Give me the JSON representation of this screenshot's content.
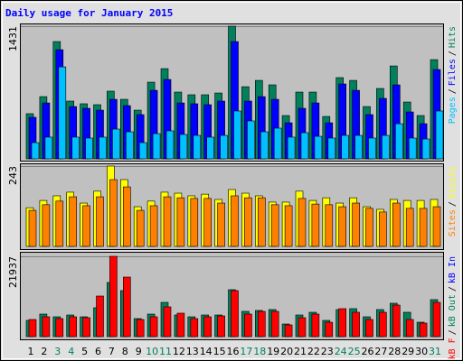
{
  "chart_data": [
    {
      "type": "bar",
      "title": "Daily usage for January 2015",
      "legend_separator": "/",
      "ylim": [
        0,
        1431
      ],
      "yticks": [
        1431
      ],
      "series": [
        {
          "name": "Pages",
          "color": "#00c0ff",
          "values": [
            175,
            234,
            992,
            234,
            224,
            234,
            321,
            292,
            175,
            272,
            302,
            263,
            253,
            234,
            253,
            516,
            409,
            292,
            331,
            234,
            282,
            243,
            224,
            253,
            253,
            224,
            253,
            379,
            224,
            214,
            516
          ]
        },
        {
          "name": "Files",
          "color": "#0000ff",
          "values": [
            448,
            603,
            1177,
            564,
            545,
            525,
            642,
            574,
            477,
            739,
            856,
            603,
            594,
            584,
            623,
            1265,
            623,
            671,
            642,
            389,
            545,
            603,
            389,
            808,
            739,
            477,
            652,
            798,
            506,
            379,
            963
          ]
        },
        {
          "name": "Hits",
          "color": "#00805c",
          "values": [
            487,
            671,
            1265,
            623,
            594,
            584,
            730,
            642,
            525,
            827,
            973,
            720,
            691,
            691,
            710,
            1431,
            778,
            846,
            798,
            467,
            720,
            720,
            457,
            876,
            846,
            564,
            759,
            1002,
            613,
            467,
            1070
          ]
        }
      ]
    },
    {
      "type": "bar",
      "legend_separator": "/",
      "ylim": [
        0,
        243
      ],
      "yticks": [
        243
      ],
      "series": [
        {
          "name": "Sites",
          "color": "#ff8000",
          "values": [
            109,
            126,
            137,
            150,
            123,
            150,
            202,
            180,
            109,
            123,
            150,
            147,
            145,
            145,
            131,
            153,
            147,
            147,
            126,
            123,
            145,
            128,
            126,
            120,
            131,
            115,
            104,
            131,
            115,
            115,
            120
          ]
        },
        {
          "name": "Visits",
          "color": "#ffff00",
          "values": [
            117,
            139,
            153,
            164,
            131,
            167,
            243,
            202,
            120,
            137,
            164,
            161,
            153,
            158,
            142,
            172,
            161,
            153,
            134,
            134,
            167,
            139,
            147,
            131,
            147,
            120,
            112,
            142,
            139,
            139,
            142
          ]
        }
      ]
    },
    {
      "type": "bar",
      "legend_separator": "/",
      "ylim": [
        0,
        21937
      ],
      "yticks": [
        21937
      ],
      "series": [
        {
          "name": "kB F",
          "color": "#ff0000",
          "values": [
            4684,
            5423,
            4930,
            5423,
            5177,
            11093,
            21937,
            16269,
            4684,
            5423,
            8135,
            6409,
            4930,
            5423,
            5670,
            12572,
            6163,
            6902,
            6902,
            3205,
            5177,
            6163,
            3944,
            7642,
            6656,
            4684,
            6656,
            8628,
            4684,
            3698,
            9367
          ]
        },
        {
          "name": "kB Out",
          "color": "#00805c",
          "values": [
            4437,
            6163,
            5423,
            5916,
            5423,
            7888,
            14790,
            12572,
            4930,
            6163,
            9367,
            5916,
            5423,
            5916,
            5916,
            12818,
            6902,
            7149,
            7395,
            3451,
            5916,
            6656,
            4437,
            7395,
            7642,
            5423,
            7395,
            9121,
            6656,
            3944,
            10107
          ]
        }
      ],
      "legend_extra": {
        "name": "kB In",
        "color": "#0000ff"
      },
      "categories": [
        "1",
        "2",
        "3",
        "4",
        "5",
        "6",
        "7",
        "8",
        "9",
        "10",
        "11",
        "12",
        "13",
        "14",
        "15",
        "16",
        "17",
        "18",
        "19",
        "20",
        "21",
        "22",
        "23",
        "24",
        "25",
        "26",
        "27",
        "28",
        "29",
        "30",
        "31"
      ],
      "category_colors": [
        "#000000",
        "#000000",
        "#00805c",
        "#00805c",
        "#000000",
        "#000000",
        "#000000",
        "#000000",
        "#000000",
        "#00805c",
        "#00805c",
        "#000000",
        "#000000",
        "#000000",
        "#000000",
        "#000000",
        "#00805c",
        "#00805c",
        "#000000",
        "#000000",
        "#000000",
        "#000000",
        "#000000",
        "#00805c",
        "#00805c",
        "#000000",
        "#000000",
        "#000000",
        "#000000",
        "#000000",
        "#00805c"
      ]
    }
  ]
}
